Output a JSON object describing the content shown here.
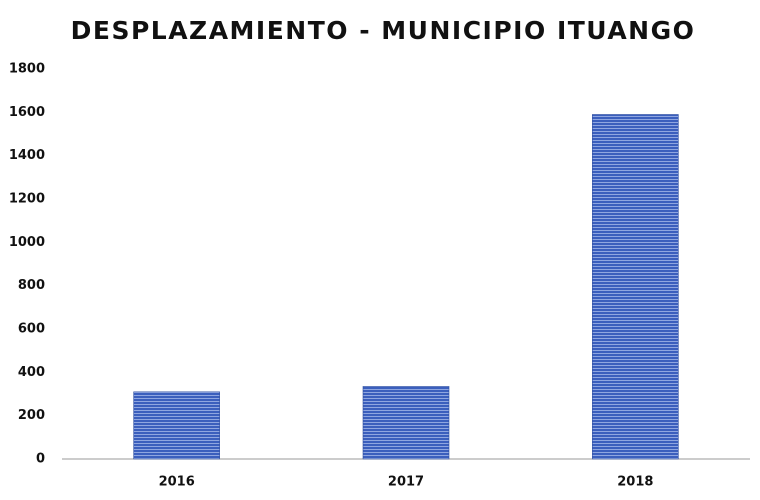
{
  "chart_data": {
    "type": "bar",
    "title": "DESPLAZAMIENTO - MUNICIPIO ITUANGO",
    "categories": [
      "2016",
      "2017",
      "2018"
    ],
    "values": [
      310,
      335,
      1590
    ],
    "color": "#3b5fbd",
    "ylim": [
      0,
      1800
    ],
    "yticks": [
      0,
      200,
      400,
      600,
      800,
      1000,
      1200,
      1400,
      1600,
      1800
    ],
    "grid": false
  }
}
